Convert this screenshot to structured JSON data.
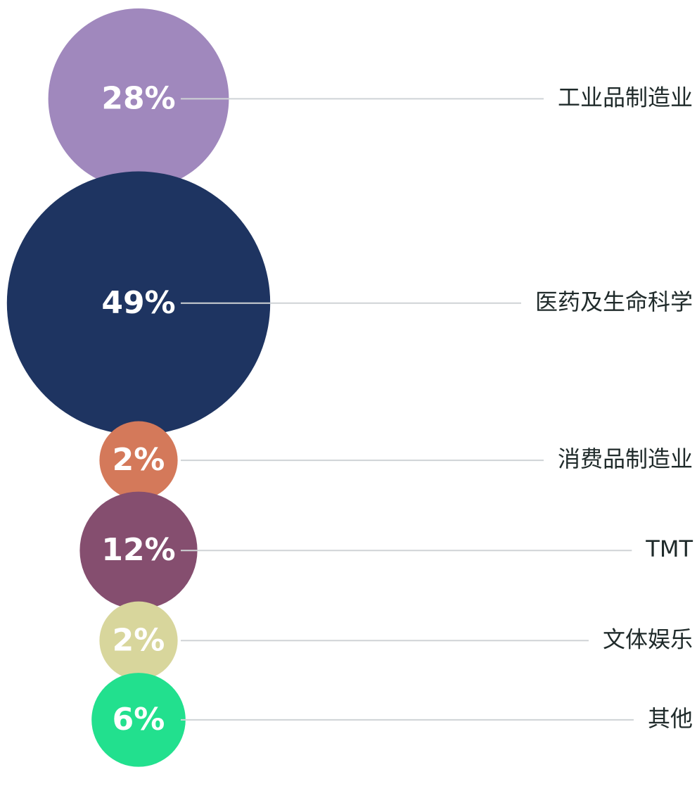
{
  "chart_data": {
    "type": "bubble",
    "categories": [
      "工业品制造业",
      "医药及生命科学",
      "消费品制造业",
      "TMT",
      "文体娱乐",
      "其他"
    ],
    "values": [
      28,
      49,
      2,
      12,
      2,
      6
    ],
    "value_labels": [
      "28%",
      "49%",
      "2%",
      "12%",
      "2%",
      "6%"
    ],
    "colors": [
      "#a088bd",
      "#1e3461",
      "#d4795a",
      "#854e6f",
      "#d8d69c",
      "#22e08e"
    ]
  }
}
